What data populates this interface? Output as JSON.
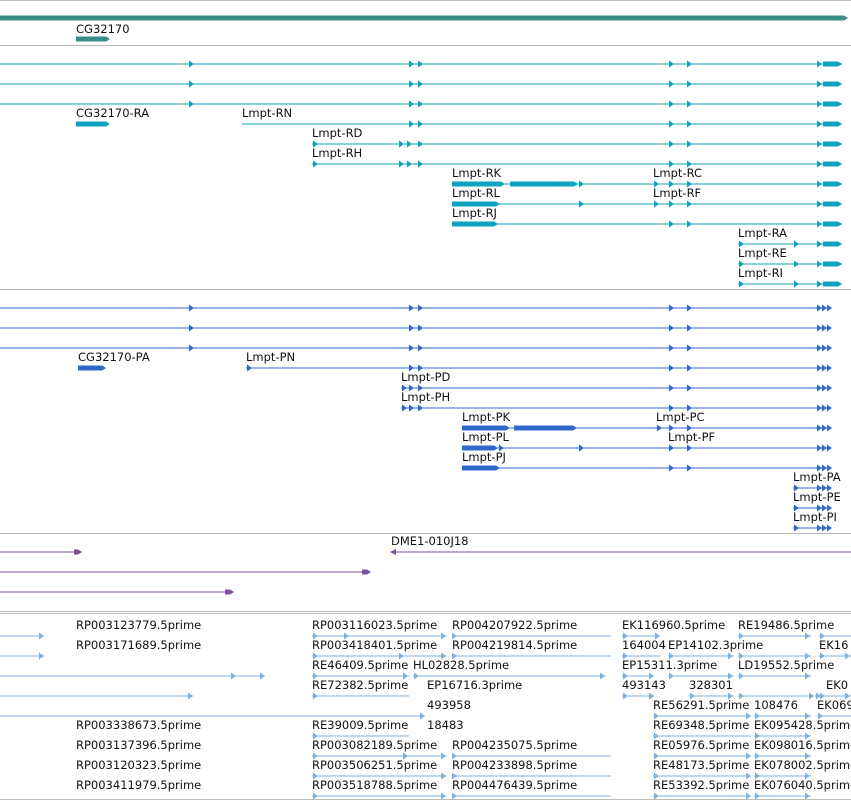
{
  "colors": {
    "gene": "#3a8c8a",
    "transcript": "#0ea1c0",
    "protein": "#2f68c8",
    "clone": "#7b4f9c",
    "est": "#7fb2dc"
  },
  "gene": {
    "label": "CG32170"
  },
  "transcripts": [
    "CG32170-RA",
    "Lmpt-RN",
    "Lmpt-RD",
    "Lmpt-RH",
    "Lmpt-RK",
    "Lmpt-RC",
    "Lmpt-RL",
    "Lmpt-RF",
    "Lmpt-RJ",
    "Lmpt-RA",
    "Lmpt-RE",
    "Lmpt-RI"
  ],
  "proteins": [
    "CG32170-PA",
    "Lmpt-PN",
    "Lmpt-PD",
    "Lmpt-PH",
    "Lmpt-PK",
    "Lmpt-PC",
    "Lmpt-PL",
    "Lmpt-PF",
    "Lmpt-PJ",
    "Lmpt-PA",
    "Lmpt-PE",
    "Lmpt-PI"
  ],
  "clone": {
    "label": "DME1-010J18"
  },
  "ests": [
    "RP003123779.5prime",
    "RP003116023.5prime",
    "RP004207922.5prime",
    "EK116960.5prime",
    "RE19486.5prime",
    "RP003171689.5prime",
    "RP003418401.5prime",
    "RP004219814.5prime",
    "164004",
    "EP14102.3prime",
    "EK16",
    "RE46409.5prime",
    "HL02828.5prime",
    "EP15311.3prime",
    "LD19552.5prime",
    "RE72382.5prime",
    "EP16716.3prime",
    "493143",
    "328301",
    "EK0",
    "493958",
    "RE56291.5prime",
    "108476",
    "EK069",
    "RP003338673.5prime",
    "RE39009.5prime",
    "18483",
    "RE69348.5prime",
    "EK095428.5prime",
    "RP003137396.5prime",
    "RP003082189.5prime",
    "RP004235075.5prime",
    "RE05976.5prime",
    "EK098016.5prime",
    "RP003120323.5prime",
    "RP003506251.5prime",
    "RP004233898.5prime",
    "RE48173.5prime",
    "EK078002.5prime",
    "RP003411979.5prime",
    "RP003518788.5prime",
    "RP004476439.5prime",
    "RE53392.5prime",
    "EK076040.5prime"
  ]
}
